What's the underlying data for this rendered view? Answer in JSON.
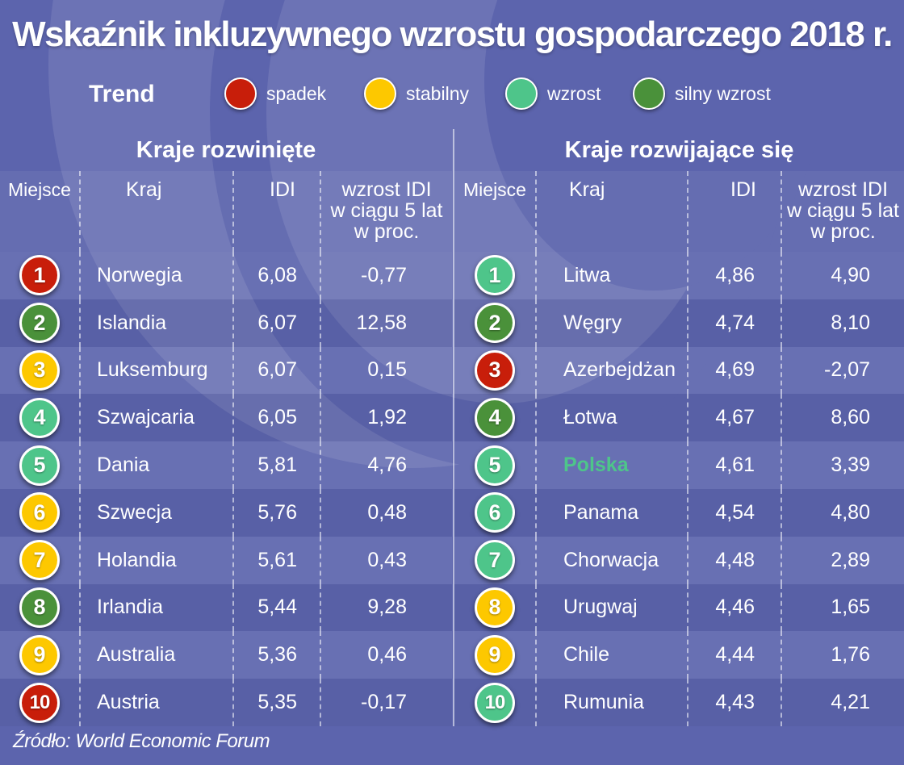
{
  "title": "Wskaźnik inkluzywnego wzrostu gospodarczego 2018 r.",
  "legend": {
    "title": "Trend",
    "items": [
      {
        "label": "spadek",
        "color": "#c81e0a"
      },
      {
        "label": "stabilny",
        "color": "#fdc800"
      },
      {
        "label": "wzrost",
        "color": "#4ec58a"
      },
      {
        "label": "silny wzrost",
        "color": "#4a913a"
      }
    ]
  },
  "columns": {
    "rank": "Miejsce",
    "country": "Kraj",
    "idi": "IDI",
    "growth_line1": "wzrost IDI",
    "growth_line2": "w ciągu 5 lat",
    "growth_line3": "w proc."
  },
  "developed": {
    "title": "Kraje rozwinięte",
    "rows": [
      {
        "rank": "1",
        "country": "Norwegia",
        "idi": "6,08",
        "growth": "-0,77",
        "trend": "spadek"
      },
      {
        "rank": "2",
        "country": "Islandia",
        "idi": "6,07",
        "growth": "12,58",
        "trend": "silny wzrost"
      },
      {
        "rank": "3",
        "country": "Luksemburg",
        "idi": "6,07",
        "growth": "0,15",
        "trend": "stabilny"
      },
      {
        "rank": "4",
        "country": "Szwajcaria",
        "idi": "6,05",
        "growth": "1,92",
        "trend": "wzrost"
      },
      {
        "rank": "5",
        "country": "Dania",
        "idi": "5,81",
        "growth": "4,76",
        "trend": "wzrost"
      },
      {
        "rank": "6",
        "country": "Szwecja",
        "idi": "5,76",
        "growth": "0,48",
        "trend": "stabilny"
      },
      {
        "rank": "7",
        "country": "Holandia",
        "idi": "5,61",
        "growth": "0,43",
        "trend": "stabilny"
      },
      {
        "rank": "8",
        "country": "Irlandia",
        "idi": "5,44",
        "growth": "9,28",
        "trend": "silny wzrost"
      },
      {
        "rank": "9",
        "country": "Australia",
        "idi": "5,36",
        "growth": "0,46",
        "trend": "stabilny"
      },
      {
        "rank": "10",
        "country": "Austria",
        "idi": "5,35",
        "growth": "-0,17",
        "trend": "spadek"
      }
    ]
  },
  "developing": {
    "title": "Kraje rozwijające się",
    "rows": [
      {
        "rank": "1",
        "country": "Litwa",
        "idi": "4,86",
        "growth": "4,90",
        "trend": "wzrost"
      },
      {
        "rank": "2",
        "country": "Węgry",
        "idi": "4,74",
        "growth": "8,10",
        "trend": "silny wzrost"
      },
      {
        "rank": "3",
        "country": "Azerbejdżan",
        "idi": "4,69",
        "growth": "-2,07",
        "trend": "spadek"
      },
      {
        "rank": "4",
        "country": "Łotwa",
        "idi": "4,67",
        "growth": "8,60",
        "trend": "silny wzrost"
      },
      {
        "rank": "5",
        "country": "Polska",
        "idi": "4,61",
        "growth": "3,39",
        "trend": "wzrost",
        "highlight": true
      },
      {
        "rank": "6",
        "country": "Panama",
        "idi": "4,54",
        "growth": "4,80",
        "trend": "wzrost"
      },
      {
        "rank": "7",
        "country": "Chorwacja",
        "idi": "4,48",
        "growth": "2,89",
        "trend": "wzrost"
      },
      {
        "rank": "8",
        "country": "Urugwaj",
        "idi": "4,46",
        "growth": "1,65",
        "trend": "stabilny"
      },
      {
        "rank": "9",
        "country": "Chile",
        "idi": "4,44",
        "growth": "1,76",
        "trend": "stabilny"
      },
      {
        "rank": "10",
        "country": "Rumunia",
        "idi": "4,43",
        "growth": "4,21",
        "trend": "wzrost"
      }
    ]
  },
  "source": "Źródło: World Economic Forum",
  "chart_data": {
    "type": "table",
    "title": "Wskaźnik inkluzywnego wzrostu gospodarczego 2018 r.",
    "legend": {
      "title": "Trend",
      "entries": [
        "spadek",
        "stabilny",
        "wzrost",
        "silny wzrost"
      ]
    },
    "tables": [
      {
        "name": "Kraje rozwinięte",
        "columns": [
          "Miejsce",
          "Kraj",
          "IDI",
          "wzrost IDI w ciągu 5 lat w proc.",
          "Trend"
        ],
        "rows": [
          [
            1,
            "Norwegia",
            6.08,
            -0.77,
            "spadek"
          ],
          [
            2,
            "Islandia",
            6.07,
            12.58,
            "silny wzrost"
          ],
          [
            3,
            "Luksemburg",
            6.07,
            0.15,
            "stabilny"
          ],
          [
            4,
            "Szwajcaria",
            6.05,
            1.92,
            "wzrost"
          ],
          [
            5,
            "Dania",
            5.81,
            4.76,
            "wzrost"
          ],
          [
            6,
            "Szwecja",
            5.76,
            0.48,
            "stabilny"
          ],
          [
            7,
            "Holandia",
            5.61,
            0.43,
            "stabilny"
          ],
          [
            8,
            "Irlandia",
            5.44,
            9.28,
            "silny wzrost"
          ],
          [
            9,
            "Australia",
            5.36,
            0.46,
            "stabilny"
          ],
          [
            10,
            "Austria",
            5.35,
            -0.17,
            "spadek"
          ]
        ]
      },
      {
        "name": "Kraje rozwijające się",
        "columns": [
          "Miejsce",
          "Kraj",
          "IDI",
          "wzrost IDI w ciągu 5 lat w proc.",
          "Trend"
        ],
        "rows": [
          [
            1,
            "Litwa",
            4.86,
            4.9,
            "wzrost"
          ],
          [
            2,
            "Węgry",
            4.74,
            8.1,
            "silny wzrost"
          ],
          [
            3,
            "Azerbejdżan",
            4.69,
            -2.07,
            "spadek"
          ],
          [
            4,
            "Łotwa",
            4.67,
            8.6,
            "silny wzrost"
          ],
          [
            5,
            "Polska",
            4.61,
            3.39,
            "wzrost"
          ],
          [
            6,
            "Panama",
            4.54,
            4.8,
            "wzrost"
          ],
          [
            7,
            "Chorwacja",
            4.48,
            2.89,
            "wzrost"
          ],
          [
            8,
            "Urugwaj",
            4.46,
            1.65,
            "stabilny"
          ],
          [
            9,
            "Chile",
            4.44,
            1.76,
            "stabilny"
          ],
          [
            10,
            "Rumunia",
            4.43,
            4.21,
            "wzrost"
          ]
        ]
      }
    ],
    "source": "World Economic Forum"
  }
}
